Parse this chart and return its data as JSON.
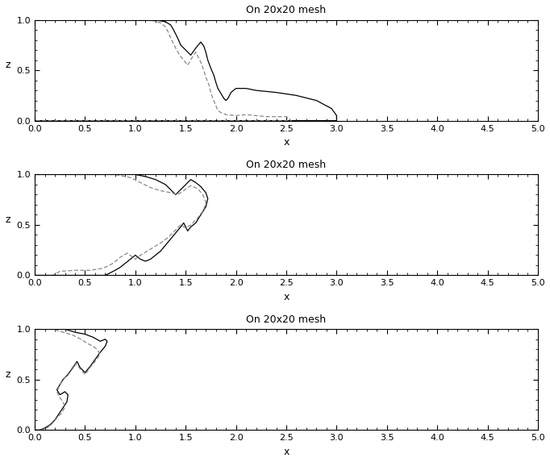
{
  "title": "On 20x20 mesh",
  "xlabel": "x",
  "ylabel": "z",
  "xlim": [
    0,
    5
  ],
  "ylim": [
    0,
    1
  ],
  "xticks": [
    0,
    0.5,
    1,
    1.5,
    2,
    2.5,
    3,
    3.5,
    4,
    4.5,
    5
  ],
  "yticks": [
    0,
    0.5,
    1
  ],
  "figsize": [
    6.82,
    5.73
  ],
  "dpi": 100,
  "background": "#ffffff",
  "line_color_solid": "#000000",
  "line_color_dashed": "#888888",
  "panel1_solid": [
    [
      0.0,
      0.0
    ],
    [
      0.0,
      1.0
    ],
    [
      0.5,
      1.0
    ],
    [
      1.0,
      1.0
    ],
    [
      1.2,
      1.0
    ],
    [
      1.3,
      0.98
    ],
    [
      1.35,
      0.95
    ],
    [
      1.38,
      0.9
    ],
    [
      1.42,
      0.82
    ],
    [
      1.45,
      0.75
    ],
    [
      1.5,
      0.7
    ],
    [
      1.55,
      0.65
    ],
    [
      1.6,
      0.72
    ],
    [
      1.65,
      0.78
    ],
    [
      1.68,
      0.74
    ],
    [
      1.7,
      0.68
    ],
    [
      1.72,
      0.6
    ],
    [
      1.75,
      0.52
    ],
    [
      1.78,
      0.45
    ],
    [
      1.8,
      0.38
    ],
    [
      1.82,
      0.32
    ],
    [
      1.85,
      0.27
    ],
    [
      1.88,
      0.22
    ],
    [
      1.9,
      0.2
    ],
    [
      1.92,
      0.22
    ],
    [
      1.95,
      0.28
    ],
    [
      2.0,
      0.32
    ],
    [
      2.1,
      0.32
    ],
    [
      2.2,
      0.3
    ],
    [
      2.4,
      0.28
    ],
    [
      2.6,
      0.25
    ],
    [
      2.8,
      0.2
    ],
    [
      2.95,
      0.12
    ],
    [
      3.0,
      0.05
    ],
    [
      3.0,
      0.0
    ],
    [
      2.0,
      0.0
    ],
    [
      1.0,
      0.0
    ],
    [
      0.5,
      0.0
    ],
    [
      0.0,
      0.0
    ]
  ],
  "panel1_dashed": [
    [
      0.0,
      0.0
    ],
    [
      0.0,
      1.0
    ],
    [
      0.5,
      1.0
    ],
    [
      1.0,
      1.0
    ],
    [
      1.15,
      1.0
    ],
    [
      1.25,
      0.97
    ],
    [
      1.3,
      0.93
    ],
    [
      1.33,
      0.87
    ],
    [
      1.36,
      0.8
    ],
    [
      1.4,
      0.72
    ],
    [
      1.44,
      0.65
    ],
    [
      1.48,
      0.6
    ],
    [
      1.52,
      0.55
    ],
    [
      1.56,
      0.62
    ],
    [
      1.6,
      0.68
    ],
    [
      1.62,
      0.64
    ],
    [
      1.65,
      0.58
    ],
    [
      1.68,
      0.5
    ],
    [
      1.7,
      0.43
    ],
    [
      1.73,
      0.36
    ],
    [
      1.75,
      0.28
    ],
    [
      1.77,
      0.22
    ],
    [
      1.8,
      0.15
    ],
    [
      1.82,
      0.1
    ],
    [
      1.85,
      0.08
    ],
    [
      1.9,
      0.06
    ],
    [
      2.0,
      0.05
    ],
    [
      2.1,
      0.06
    ],
    [
      2.2,
      0.05
    ],
    [
      2.3,
      0.04
    ],
    [
      2.4,
      0.04
    ],
    [
      2.5,
      0.04
    ],
    [
      2.55,
      0.0
    ],
    [
      1.5,
      0.0
    ],
    [
      0.5,
      0.0
    ],
    [
      0.0,
      0.0
    ]
  ],
  "panel2_solid": [
    [
      0.0,
      0.0
    ],
    [
      0.0,
      1.0
    ],
    [
      0.2,
      1.0
    ],
    [
      0.5,
      1.0
    ],
    [
      0.8,
      1.0
    ],
    [
      1.0,
      1.0
    ],
    [
      1.1,
      0.98
    ],
    [
      1.2,
      0.95
    ],
    [
      1.3,
      0.9
    ],
    [
      1.35,
      0.85
    ],
    [
      1.4,
      0.8
    ],
    [
      1.45,
      0.85
    ],
    [
      1.5,
      0.9
    ],
    [
      1.55,
      0.95
    ],
    [
      1.6,
      0.92
    ],
    [
      1.65,
      0.88
    ],
    [
      1.7,
      0.82
    ],
    [
      1.72,
      0.76
    ],
    [
      1.7,
      0.68
    ],
    [
      1.65,
      0.6
    ],
    [
      1.6,
      0.52
    ],
    [
      1.55,
      0.48
    ],
    [
      1.52,
      0.44
    ],
    [
      1.5,
      0.48
    ],
    [
      1.48,
      0.52
    ],
    [
      1.45,
      0.48
    ],
    [
      1.4,
      0.42
    ],
    [
      1.35,
      0.36
    ],
    [
      1.3,
      0.3
    ],
    [
      1.25,
      0.24
    ],
    [
      1.2,
      0.2
    ],
    [
      1.15,
      0.16
    ],
    [
      1.1,
      0.14
    ],
    [
      1.05,
      0.16
    ],
    [
      1.0,
      0.2
    ],
    [
      0.95,
      0.16
    ],
    [
      0.9,
      0.12
    ],
    [
      0.85,
      0.08
    ],
    [
      0.78,
      0.04
    ],
    [
      0.7,
      0.0
    ],
    [
      0.3,
      0.0
    ],
    [
      0.0,
      0.0
    ]
  ],
  "panel2_dashed": [
    [
      0.0,
      0.0
    ],
    [
      0.0,
      1.0
    ],
    [
      0.2,
      1.0
    ],
    [
      0.4,
      1.0
    ],
    [
      0.6,
      1.0
    ],
    [
      0.8,
      1.0
    ],
    [
      0.95,
      0.97
    ],
    [
      1.05,
      0.92
    ],
    [
      1.15,
      0.87
    ],
    [
      1.25,
      0.84
    ],
    [
      1.35,
      0.82
    ],
    [
      1.42,
      0.8
    ],
    [
      1.48,
      0.84
    ],
    [
      1.55,
      0.89
    ],
    [
      1.62,
      0.86
    ],
    [
      1.67,
      0.8
    ],
    [
      1.7,
      0.73
    ],
    [
      1.68,
      0.65
    ],
    [
      1.62,
      0.57
    ],
    [
      1.55,
      0.5
    ],
    [
      1.5,
      0.47
    ],
    [
      1.45,
      0.5
    ],
    [
      1.4,
      0.45
    ],
    [
      1.33,
      0.38
    ],
    [
      1.25,
      0.32
    ],
    [
      1.15,
      0.26
    ],
    [
      1.05,
      0.2
    ],
    [
      1.0,
      0.16
    ],
    [
      0.92,
      0.22
    ],
    [
      0.85,
      0.18
    ],
    [
      0.78,
      0.12
    ],
    [
      0.68,
      0.07
    ],
    [
      0.55,
      0.05
    ],
    [
      0.4,
      0.05
    ],
    [
      0.25,
      0.04
    ],
    [
      0.18,
      0.0
    ],
    [
      0.0,
      0.0
    ]
  ],
  "panel3_solid": [
    [
      0.0,
      0.0
    ],
    [
      0.0,
      1.0
    ],
    [
      0.1,
      1.0
    ],
    [
      0.2,
      1.0
    ],
    [
      0.3,
      1.0
    ],
    [
      0.4,
      0.97
    ],
    [
      0.5,
      0.95
    ],
    [
      0.58,
      0.92
    ],
    [
      0.65,
      0.88
    ],
    [
      0.7,
      0.9
    ],
    [
      0.72,
      0.88
    ],
    [
      0.7,
      0.83
    ],
    [
      0.65,
      0.77
    ],
    [
      0.6,
      0.7
    ],
    [
      0.55,
      0.63
    ],
    [
      0.5,
      0.57
    ],
    [
      0.45,
      0.62
    ],
    [
      0.42,
      0.68
    ],
    [
      0.38,
      0.62
    ],
    [
      0.33,
      0.55
    ],
    [
      0.28,
      0.5
    ],
    [
      0.25,
      0.45
    ],
    [
      0.22,
      0.4
    ],
    [
      0.25,
      0.35
    ],
    [
      0.3,
      0.38
    ],
    [
      0.33,
      0.35
    ],
    [
      0.32,
      0.28
    ],
    [
      0.28,
      0.22
    ],
    [
      0.24,
      0.16
    ],
    [
      0.2,
      0.1
    ],
    [
      0.15,
      0.05
    ],
    [
      0.1,
      0.02
    ],
    [
      0.05,
      0.0
    ],
    [
      0.0,
      0.0
    ]
  ],
  "panel3_dashed": [
    [
      0.0,
      0.0
    ],
    [
      0.0,
      1.0
    ],
    [
      0.08,
      1.0
    ],
    [
      0.18,
      1.0
    ],
    [
      0.28,
      0.97
    ],
    [
      0.38,
      0.94
    ],
    [
      0.46,
      0.9
    ],
    [
      0.52,
      0.86
    ],
    [
      0.58,
      0.83
    ],
    [
      0.62,
      0.8
    ],
    [
      0.65,
      0.75
    ],
    [
      0.6,
      0.68
    ],
    [
      0.55,
      0.62
    ],
    [
      0.5,
      0.55
    ],
    [
      0.44,
      0.62
    ],
    [
      0.4,
      0.66
    ],
    [
      0.36,
      0.6
    ],
    [
      0.3,
      0.52
    ],
    [
      0.25,
      0.45
    ],
    [
      0.22,
      0.38
    ],
    [
      0.25,
      0.32
    ],
    [
      0.28,
      0.28
    ],
    [
      0.3,
      0.23
    ],
    [
      0.27,
      0.17
    ],
    [
      0.22,
      0.12
    ],
    [
      0.17,
      0.06
    ],
    [
      0.12,
      0.02
    ],
    [
      0.06,
      0.0
    ],
    [
      0.0,
      0.0
    ]
  ]
}
